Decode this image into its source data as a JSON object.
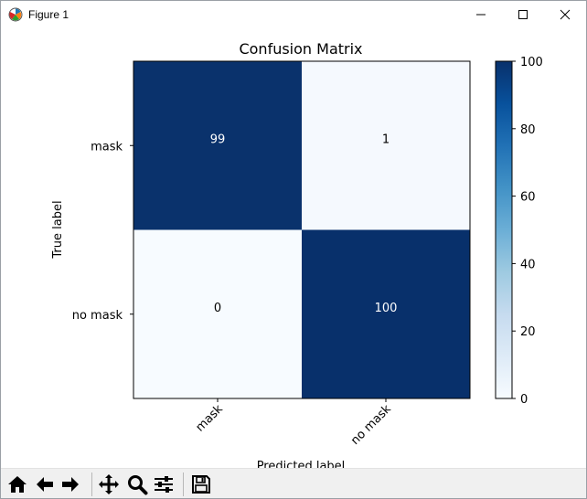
{
  "window": {
    "title": "Figure 1",
    "controls": [
      "minimize",
      "maximize",
      "close"
    ]
  },
  "toolbar": {
    "buttons": [
      {
        "name": "home",
        "icon": "home-icon"
      },
      {
        "name": "back",
        "icon": "arrow-left-icon"
      },
      {
        "name": "forward",
        "icon": "arrow-right-icon"
      },
      {
        "name": "pan",
        "icon": "move-icon"
      },
      {
        "name": "zoom",
        "icon": "zoom-icon"
      },
      {
        "name": "configure-subplots",
        "icon": "sliders-icon"
      },
      {
        "name": "save",
        "icon": "save-icon"
      }
    ]
  },
  "chart_data": {
    "type": "heatmap",
    "title": "Confusion Matrix",
    "xlabel": "Predicted label",
    "ylabel": "True label",
    "x_categories": [
      "mask",
      "no mask"
    ],
    "y_categories": [
      "mask",
      "no mask"
    ],
    "values": [
      [
        99,
        1
      ],
      [
        0,
        100
      ]
    ],
    "colormap": "Blues",
    "color_low": "#f7fbff",
    "color_high": "#08306b",
    "colorbar": {
      "min": 0,
      "max": 100,
      "ticks": [
        0,
        20,
        40,
        60,
        80,
        100
      ]
    },
    "x_tick_rotation_deg": 45
  }
}
